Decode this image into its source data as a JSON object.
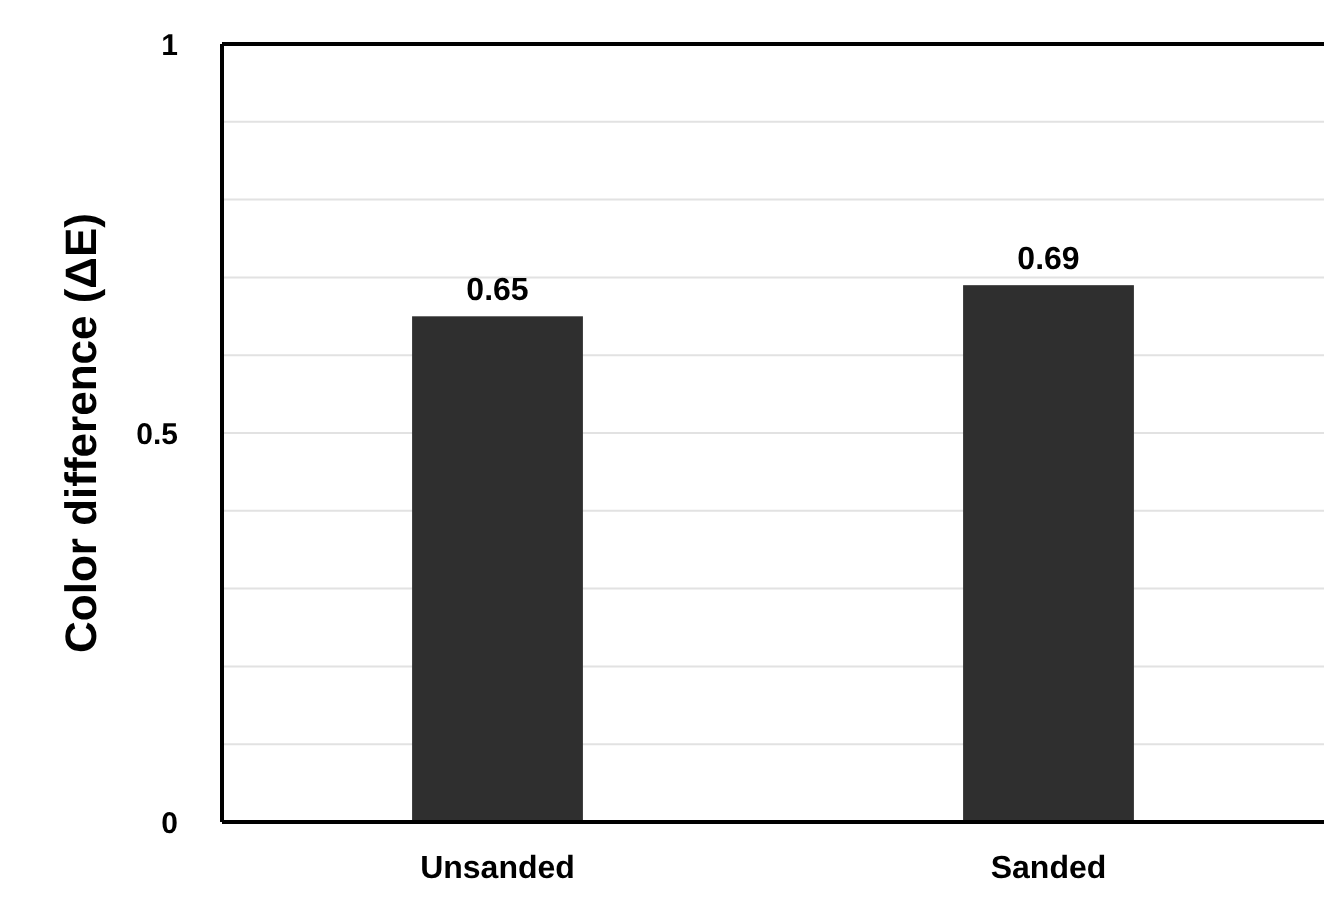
{
  "chart_data": {
    "type": "bar",
    "ylabel": "Color difference (ΔE)",
    "categories": [
      "Unsanded",
      "Sanded"
    ],
    "values": [
      0.65,
      0.69
    ],
    "color": "#2f2f2f",
    "data_labels": true,
    "ylim": [
      0,
      1
    ],
    "yticks": [
      0,
      {
        "value": 0.1,
        "label": null
      },
      {
        "value": 0.2,
        "label": null
      },
      {
        "value": 0.3,
        "label": null
      },
      {
        "value": 0.4,
        "label": null
      },
      0.5,
      {
        "value": 0.6,
        "label": null
      },
      {
        "value": 0.7,
        "label": null
      },
      {
        "value": 0.8,
        "label": null
      },
      {
        "value": 0.9,
        "label": null
      },
      1
    ],
    "grid": "y"
  }
}
